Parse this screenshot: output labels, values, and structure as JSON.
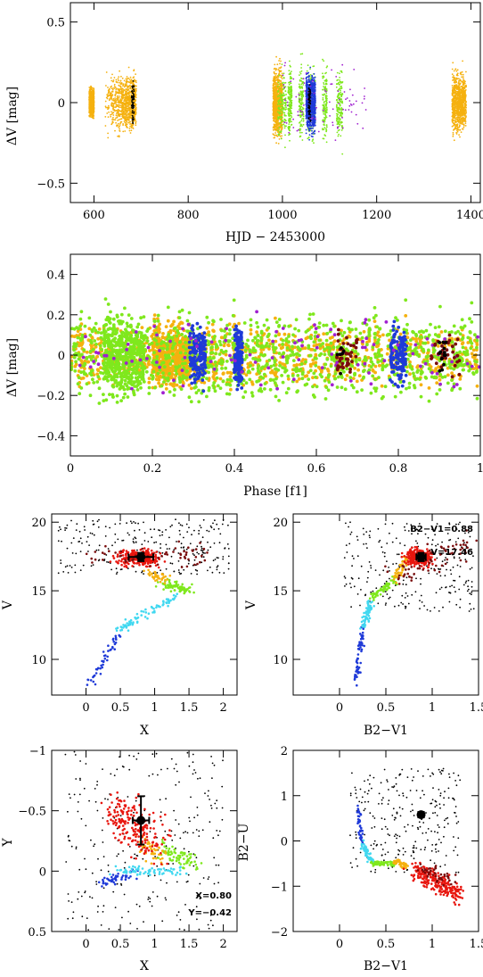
{
  "colors": {
    "orange": "#f5b10f",
    "green": "#7fe81d",
    "blue": "#1f3ad8",
    "purple": "#a020d0",
    "darkred": "#7a0c0c",
    "red": "#e8160e",
    "cyan": "#41d8f0",
    "black": "#000000"
  },
  "chart_data": [
    {
      "type": "scatter",
      "xlabel": "HJD − 2453000",
      "ylabel": "ΔV [mag]",
      "xlim": [
        550,
        1420
      ],
      "ylim": [
        0.62,
        -0.62
      ],
      "xticks": [
        600,
        800,
        1000,
        1200,
        1400
      ],
      "yticks": [
        -0.5,
        0,
        0.5
      ],
      "ytick_labels": [
        "−0.5",
        "0",
        "0.5"
      ],
      "series": [
        {
          "color": "orange",
          "blocks": [
            [
              590,
              600,
              0.18
            ],
            [
              620,
              690,
              0.38
            ],
            [
              980,
              1000,
              0.45
            ],
            [
              1360,
              1390,
              0.4
            ]
          ]
        },
        {
          "color": "green",
          "blocks": [
            [
              990,
              1130,
              0.5
            ]
          ]
        },
        {
          "color": "blue",
          "blocks": [
            [
              1050,
              1070,
              0.38
            ]
          ]
        },
        {
          "color": "purple",
          "blocks": [
            [
              1000,
              1180,
              0.55
            ]
          ]
        },
        {
          "color": "black",
          "blocks": [
            [
              680,
              685,
              0.3
            ],
            [
              1055,
              1060,
              0.3
            ]
          ]
        }
      ]
    },
    {
      "type": "scatter",
      "xlabel": "Phase [f1]",
      "ylabel": "ΔV [mag]",
      "xlim": [
        0,
        1
      ],
      "ylim": [
        0.5,
        -0.5
      ],
      "xticks": [
        0,
        0.2,
        0.4,
        0.6,
        0.8,
        1
      ],
      "yticks": [
        -0.4,
        -0.2,
        0,
        0.2,
        0.4
      ],
      "ytick_labels": [
        "−0.4",
        "−0.2",
        "0",
        "0.2",
        "0.4"
      ],
      "series": [
        {
          "color": "orange",
          "range": [
            0,
            1
          ],
          "amp": 0.3
        },
        {
          "color": "green",
          "range": [
            0,
            1
          ],
          "amp": 0.42
        },
        {
          "color": "blue",
          "bands": [
            [
              0.29,
              0.33
            ],
            [
              0.4,
              0.42
            ],
            [
              0.78,
              0.82
            ]
          ],
          "amp": 0.3
        },
        {
          "color": "purple",
          "range": [
            0,
            1
          ],
          "amp": 0.4
        },
        {
          "color": "darkred",
          "bands": [
            [
              0.65,
              0.7
            ],
            [
              0.88,
              0.95
            ]
          ],
          "amp": 0.22
        },
        {
          "color": "black",
          "bands": [
            [
              0.65,
              0.67
            ],
            [
              0.9,
              0.92
            ]
          ],
          "amp": 0.25
        }
      ]
    },
    {
      "type": "scatter",
      "xlabel": "X",
      "ylabel": "V",
      "xlim": [
        -0.5,
        2.2
      ],
      "ylim": [
        20.6,
        7.4
      ],
      "xticks": [
        0,
        0.5,
        1,
        1.5,
        2
      ],
      "yticks": [
        10,
        15,
        20
      ],
      "point_with_errorbar": {
        "x": 0.8,
        "y": 17.46,
        "xerr": 0.18,
        "yerr": 0.3
      }
    },
    {
      "type": "scatter",
      "xlabel": "B2−V1",
      "ylabel": "V",
      "xlim": [
        -0.5,
        1.5
      ],
      "ylim": [
        20.6,
        7.4
      ],
      "xticks": [
        0,
        0.5,
        1,
        1.5
      ],
      "yticks": [
        10,
        15,
        20
      ],
      "annotations": [
        "B2−V1=0.88",
        "V=17.46"
      ],
      "point_with_errorbar": {
        "x": 0.88,
        "y": 17.46,
        "xerr": 0.05,
        "yerr": 0.3
      }
    },
    {
      "type": "scatter",
      "xlabel": "X",
      "ylabel": "Y",
      "xlim": [
        -0.5,
        2.2
      ],
      "ylim": [
        -1,
        0.5
      ],
      "xticks": [
        0,
        0.5,
        1,
        1.5,
        2
      ],
      "yticks": [
        -1,
        -0.5,
        0,
        0.5
      ],
      "ytick_labels": [
        "−1",
        "−0.5",
        "0",
        "0.5"
      ],
      "annotations": [
        "X=0.80",
        "Y=−0.42"
      ],
      "point_with_errorbar": {
        "x": 0.8,
        "y": -0.42,
        "xerr": 0.12,
        "yerr": 0.2
      }
    },
    {
      "type": "scatter",
      "xlabel": "B2−V1",
      "ylabel": "B2−U",
      "xlim": [
        -0.5,
        1.5
      ],
      "ylim": [
        2,
        -2
      ],
      "xticks": [
        0,
        0.5,
        1,
        1.5
      ],
      "yticks": [
        -2,
        -1,
        0,
        1,
        2
      ],
      "ytick_labels": [
        "−2",
        "−1",
        "0",
        "1",
        "2"
      ],
      "point_with_errorbar": {
        "x": 0.88,
        "y": 0.58,
        "xerr": 0.03,
        "yerr": 0.05
      }
    }
  ]
}
